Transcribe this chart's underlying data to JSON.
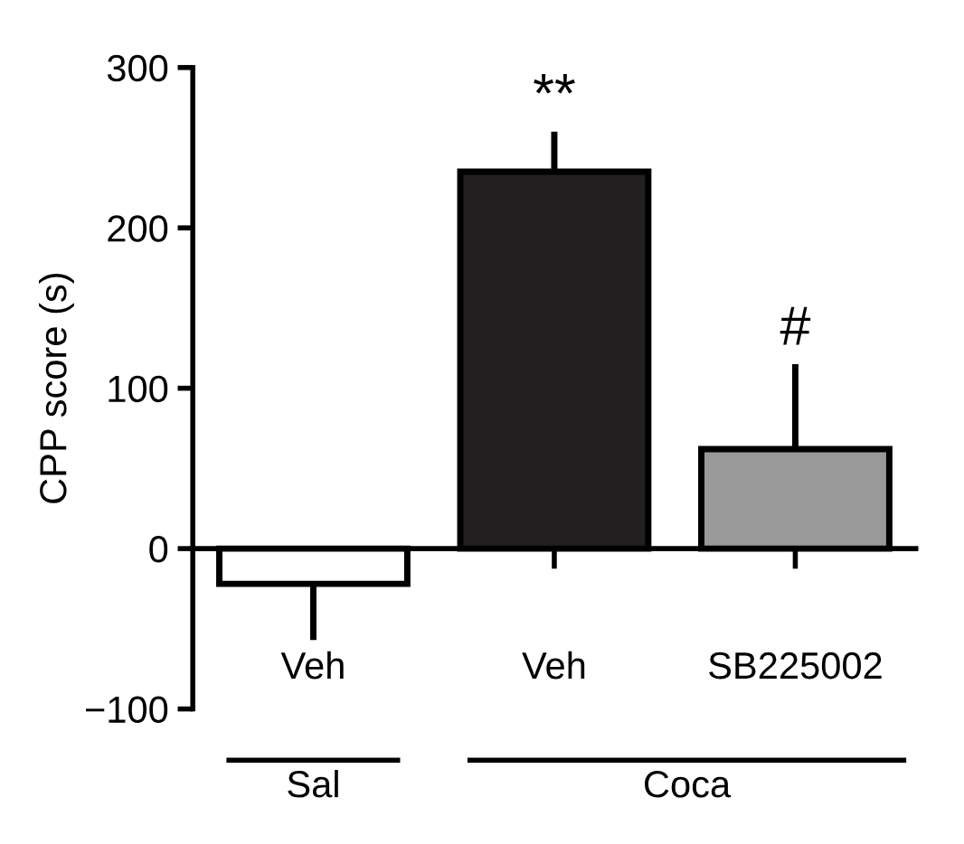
{
  "chart_data": {
    "type": "bar",
    "ylabel": "CPP score (s)",
    "categories": [
      "Veh",
      "Veh",
      "SB225002"
    ],
    "values": [
      -22,
      235,
      62
    ],
    "colors": [
      "#ffffff",
      "#231f20",
      "#999999"
    ],
    "errors": [
      [
        -57,
        -22
      ],
      [
        235,
        260
      ],
      [
        62,
        115
      ]
    ],
    "ylim": [
      -100,
      300
    ],
    "yticks": [
      {
        "value": -100,
        "label": "−100"
      },
      0,
      100,
      200,
      300
    ],
    "annotations": [
      "**",
      "#",
      "Sal",
      "Coca"
    ]
  }
}
